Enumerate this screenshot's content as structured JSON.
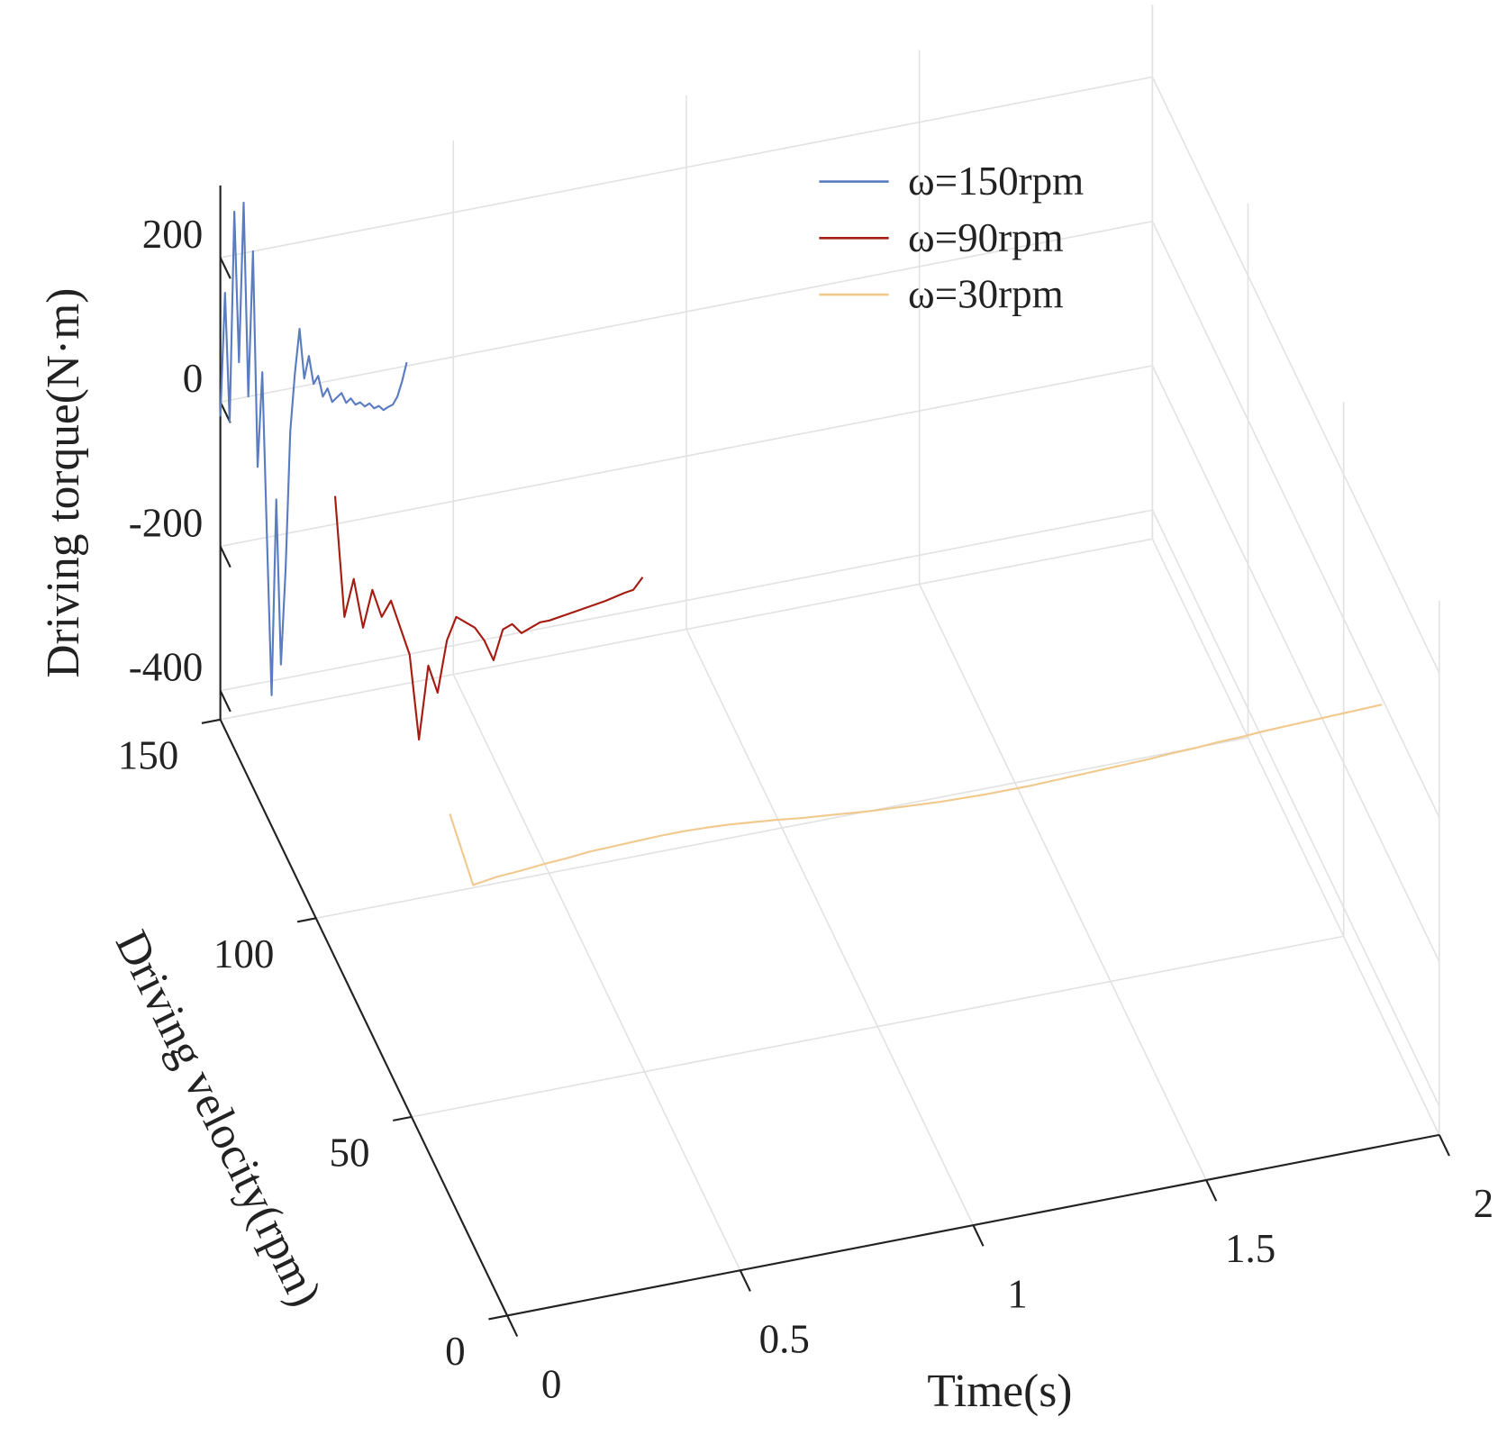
{
  "chart_data": {
    "type": "line3d",
    "xlabel": "Time(s)",
    "ylabel": "Driving velocity(rpm)",
    "zlabel": "Driving torque(N·m)",
    "xlim": [
      0,
      2
    ],
    "xticks": [
      0,
      0.5,
      1,
      1.5,
      2
    ],
    "ylim": [
      0,
      150
    ],
    "yticks": [
      0,
      50,
      100,
      150
    ],
    "zlim": [
      -440,
      300
    ],
    "zticks": [
      -400,
      -200,
      0,
      200
    ],
    "grid": true,
    "legend": "upper right",
    "series": [
      {
        "name": "ω=150rpm",
        "color": "#5a7cc0",
        "velocity": 150,
        "x": [
          0,
          0.01,
          0.02,
          0.03,
          0.04,
          0.05,
          0.06,
          0.07,
          0.08,
          0.09,
          0.1,
          0.11,
          0.12,
          0.13,
          0.14,
          0.15,
          0.16,
          0.17,
          0.18,
          0.19,
          0.2,
          0.21,
          0.22,
          0.23,
          0.24,
          0.25,
          0.26,
          0.27,
          0.28,
          0.29,
          0.3,
          0.31,
          0.32,
          0.33,
          0.34,
          0.35,
          0.36,
          0.37,
          0.38,
          0.39,
          0.4
        ],
        "values": [
          -20,
          150,
          -30,
          260,
          50,
          270,
          0,
          200,
          -100,
          30,
          -200,
          -420,
          -150,
          -380,
          -250,
          -60,
          20,
          80,
          10,
          40,
          0,
          10,
          -20,
          -10,
          -30,
          -25,
          -20,
          -35,
          -30,
          -40,
          -38,
          -45,
          -42,
          -50,
          -48,
          -55,
          -52,
          -50,
          -40,
          -20,
          5
        ]
      },
      {
        "name": "ω=90rpm",
        "color": "#a51c12",
        "velocity": 90,
        "x": [
          0,
          0.02,
          0.04,
          0.06,
          0.08,
          0.1,
          0.12,
          0.14,
          0.16,
          0.18,
          0.2,
          0.22,
          0.24,
          0.26,
          0.28,
          0.3,
          0.32,
          0.34,
          0.36,
          0.38,
          0.4,
          0.42,
          0.44,
          0.46,
          0.48,
          0.5,
          0.52,
          0.54,
          0.56,
          0.58,
          0.6,
          0.62,
          0.64,
          0.66
        ],
        "values": [
          200,
          30,
          80,
          10,
          60,
          20,
          40,
          0,
          -40,
          -160,
          -60,
          -100,
          -30,
          0,
          -10,
          -20,
          -40,
          -70,
          -30,
          -25,
          -40,
          -35,
          -30,
          -30,
          -28,
          -26,
          -24,
          -22,
          -20,
          -18,
          -15,
          -12,
          -10,
          5
        ]
      },
      {
        "name": "ω=30rpm",
        "color": "#f0c98e",
        "velocity": 30,
        "x": [
          0,
          0.05,
          0.1,
          0.15,
          0.2,
          0.25,
          0.3,
          0.35,
          0.4,
          0.45,
          0.5,
          0.55,
          0.6,
          0.65,
          0.7,
          0.75,
          0.8,
          0.85,
          0.9,
          0.95,
          1,
          1.05,
          1.1,
          1.15,
          1.2,
          1.25,
          1.3,
          1.35,
          1.4,
          1.45,
          1.5,
          1.55,
          1.6,
          1.65,
          1.7,
          1.75,
          1.8,
          1.85,
          1.9,
          1.95,
          2
        ],
        "values": [
          90,
          -15,
          -10,
          -8,
          -5,
          -3,
          0,
          1,
          2,
          3,
          3,
          2,
          0,
          -3,
          -6,
          -10,
          -13,
          -16,
          -19,
          -21,
          -23,
          -25,
          -26,
          -27,
          -27,
          -27,
          -26,
          -25,
          -24,
          -23,
          -22,
          -20,
          -19,
          -17,
          -16,
          -14,
          -13,
          -12,
          -11,
          -10,
          -9
        ]
      }
    ]
  }
}
